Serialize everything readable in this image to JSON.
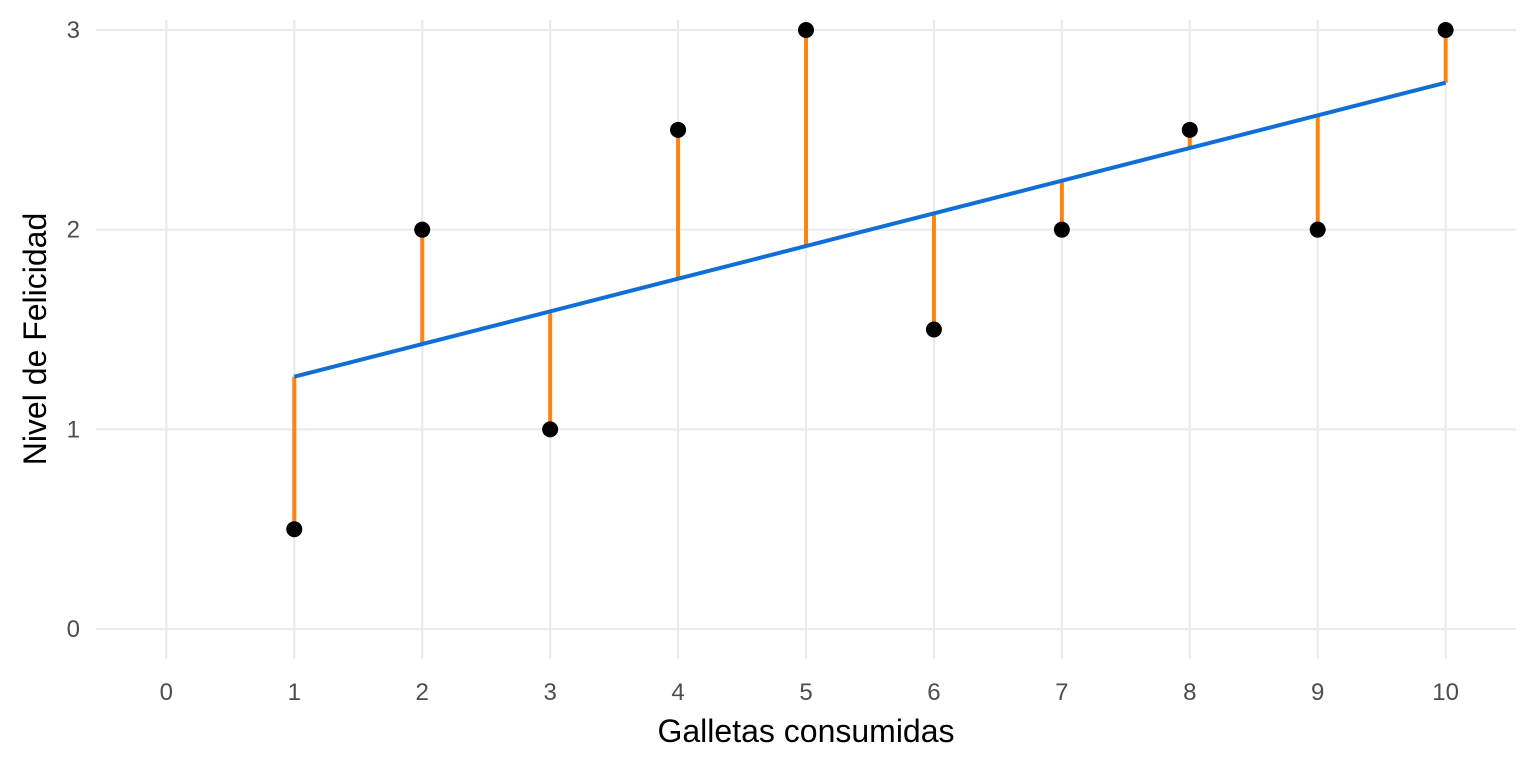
{
  "chart_data": {
    "type": "scatter",
    "xlabel": "Galletas consumidas",
    "ylabel": "Nivel de Felicidad",
    "xlim": [
      -0.55,
      10.55
    ],
    "ylim": [
      -0.15,
      3.05
    ],
    "x_ticks": [
      0,
      1,
      2,
      3,
      4,
      5,
      6,
      7,
      8,
      9,
      10
    ],
    "y_ticks": [
      0,
      1,
      2,
      3
    ],
    "grid": true,
    "points": {
      "x": [
        1,
        2,
        3,
        4,
        5,
        6,
        7,
        8,
        9,
        10
      ],
      "y": [
        0.5,
        2,
        1,
        2.5,
        3,
        1.5,
        2,
        2.5,
        2,
        3
      ]
    },
    "regression_line": {
      "intercept": 1.1,
      "slope": 0.1636
    },
    "residual_segments": true,
    "colors": {
      "points": "#000000",
      "regression_line": "#0f6fd6",
      "residuals": "#ff8212",
      "grid": "#ebebeb"
    }
  }
}
